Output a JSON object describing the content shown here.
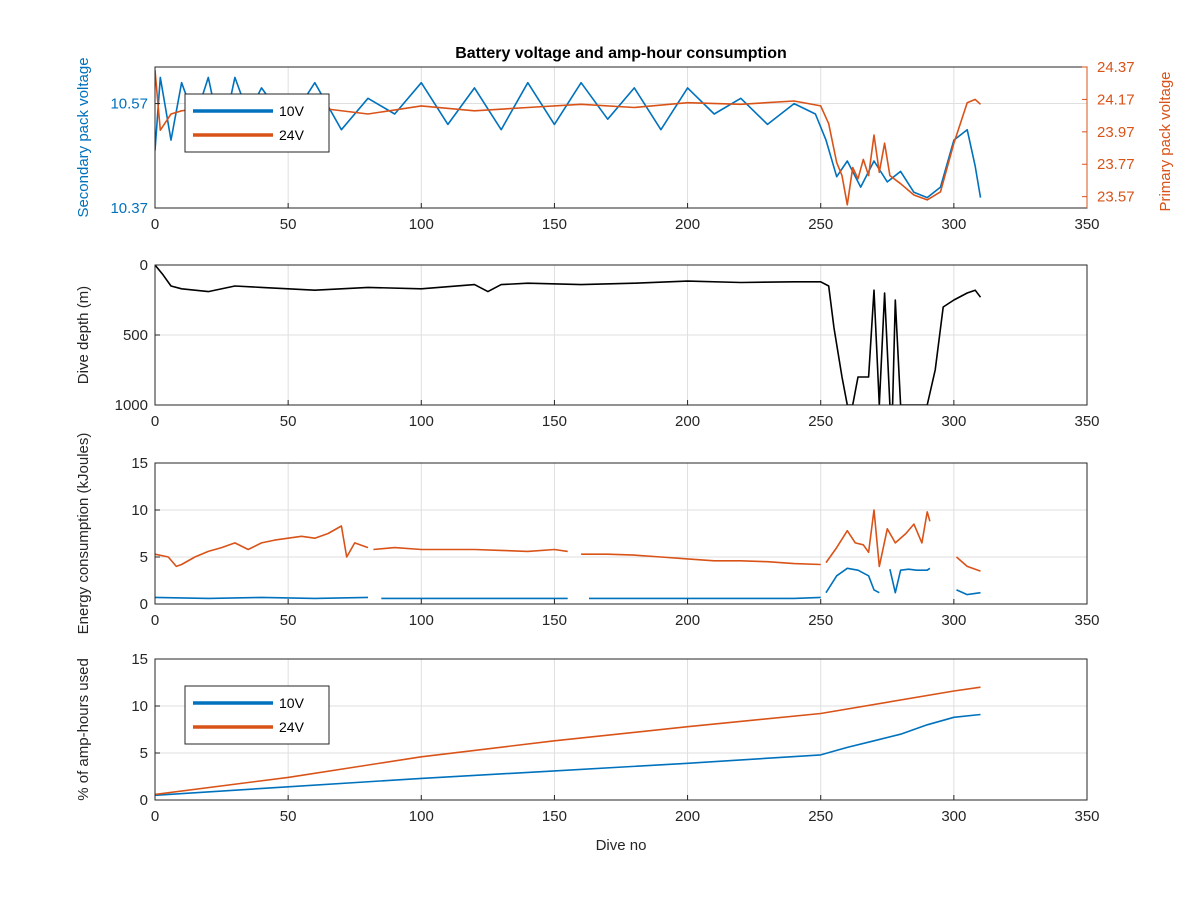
{
  "colors": {
    "blue": "#0072BD",
    "orange": "#D95319",
    "black": "#000000",
    "grid": "#dfdfdf",
    "axis": "#262626"
  },
  "chart_data": [
    {
      "type": "line",
      "title": "Battery voltage and amp-hour consumption",
      "xlabel": "",
      "xlim": [
        0,
        350
      ],
      "xticks": [
        0,
        50,
        100,
        150,
        200,
        250,
        300,
        350
      ],
      "ylabel_left": "Secondary pack voltage",
      "ylabel_right": "Primary pack voltage",
      "ylim_left": [
        10.37,
        10.64
      ],
      "yticks_left": [
        "10.37",
        "10.57"
      ],
      "ylim_right": [
        23.5,
        24.37
      ],
      "yticks_right": [
        "23.57",
        "23.77",
        "23.97",
        "24.17",
        "24.37"
      ],
      "grid": true,
      "legend": {
        "placement": "top-left",
        "entries": [
          "10V",
          "24V"
        ]
      },
      "series": [
        {
          "name": "10V",
          "axis": "left",
          "x": [
            0,
            2,
            6,
            10,
            15,
            20,
            25,
            30,
            35,
            40,
            50,
            60,
            70,
            80,
            90,
            100,
            110,
            120,
            130,
            140,
            150,
            160,
            170,
            180,
            190,
            200,
            210,
            220,
            230,
            240,
            248,
            252,
            256,
            260,
            265,
            270,
            275,
            280,
            285,
            290,
            295,
            300,
            305,
            308,
            310
          ],
          "y": [
            10.48,
            10.62,
            10.5,
            10.61,
            10.54,
            10.62,
            10.5,
            10.62,
            10.55,
            10.6,
            10.53,
            10.61,
            10.52,
            10.58,
            10.55,
            10.61,
            10.53,
            10.6,
            10.52,
            10.61,
            10.53,
            10.61,
            10.54,
            10.6,
            10.52,
            10.6,
            10.55,
            10.58,
            10.53,
            10.57,
            10.55,
            10.5,
            10.43,
            10.46,
            10.41,
            10.46,
            10.42,
            10.44,
            10.4,
            10.39,
            10.41,
            10.5,
            10.52,
            10.45,
            10.39
          ]
        },
        {
          "name": "24V",
          "axis": "right",
          "x": [
            0,
            2,
            4,
            6,
            10,
            20,
            30,
            40,
            60,
            80,
            100,
            120,
            140,
            160,
            180,
            200,
            220,
            240,
            250,
            253,
            256,
            258,
            260,
            262,
            264,
            266,
            268,
            270,
            272,
            274,
            276,
            280,
            285,
            290,
            295,
            300,
            305,
            308,
            310
          ],
          "y": [
            24.35,
            23.98,
            24.03,
            24.08,
            24.1,
            24.12,
            24.13,
            24.11,
            24.12,
            24.08,
            24.13,
            24.1,
            24.12,
            24.14,
            24.12,
            24.15,
            24.14,
            24.16,
            24.13,
            24.02,
            23.78,
            23.7,
            23.52,
            23.75,
            23.68,
            23.8,
            23.7,
            23.95,
            23.72,
            23.9,
            23.7,
            23.65,
            23.58,
            23.55,
            23.6,
            23.9,
            24.15,
            24.17,
            24.14
          ]
        }
      ]
    },
    {
      "type": "line",
      "title": "",
      "xlabel": "",
      "xlim": [
        0,
        350
      ],
      "xticks": [
        0,
        50,
        100,
        150,
        200,
        250,
        300,
        350
      ],
      "ylabel": "Dive depth (m)",
      "ylim": [
        0,
        1000
      ],
      "ylim_reversed": true,
      "yticks": [
        "0",
        "500",
        "1000"
      ],
      "grid": true,
      "series": [
        {
          "name": "",
          "color": "black",
          "x": [
            0,
            3,
            6,
            10,
            20,
            30,
            40,
            60,
            80,
            100,
            120,
            125,
            130,
            140,
            160,
            180,
            200,
            220,
            240,
            250,
            253,
            255,
            258,
            260,
            262,
            264,
            268,
            270,
            272,
            274,
            276,
            277,
            278,
            280,
            284,
            290,
            293,
            296,
            300,
            305,
            308,
            310
          ],
          "y": [
            0,
            70,
            150,
            170,
            190,
            150,
            160,
            180,
            160,
            170,
            140,
            190,
            140,
            130,
            140,
            130,
            115,
            125,
            120,
            120,
            150,
            450,
            800,
            1000,
            1000,
            800,
            800,
            180,
            1000,
            200,
            1000,
            1000,
            250,
            1000,
            1000,
            1000,
            750,
            300,
            250,
            200,
            180,
            230
          ]
        }
      ]
    },
    {
      "type": "line",
      "title": "",
      "xlabel": "",
      "xlim": [
        0,
        350
      ],
      "xticks": [
        0,
        50,
        100,
        150,
        200,
        250,
        300,
        350
      ],
      "ylabel": "Energy consumption (kJoules)",
      "ylim": [
        0,
        15
      ],
      "yticks": [
        "0",
        "5",
        "10",
        "15"
      ],
      "grid": true,
      "series": [
        {
          "name": "24V",
          "color": "orange",
          "segments": [
            {
              "x": [
                0,
                5,
                8,
                10,
                15,
                20,
                25,
                30,
                35,
                40,
                45,
                50,
                55,
                60,
                65,
                70,
                72,
                75,
                80
              ],
              "y": [
                5.3,
                5.0,
                4.0,
                4.2,
                5.0,
                5.6,
                6.0,
                6.5,
                5.8,
                6.5,
                6.8,
                7.0,
                7.2,
                7.0,
                7.5,
                8.3,
                5.0,
                6.5,
                6.0
              ]
            },
            {
              "x": [
                82,
                90,
                100,
                110,
                120,
                130,
                140,
                150,
                155
              ],
              "y": [
                5.8,
                6.0,
                5.8,
                5.8,
                5.8,
                5.7,
                5.6,
                5.8,
                5.6
              ]
            },
            {
              "x": [
                160,
                170,
                180,
                190,
                200,
                210,
                220,
                230,
                240,
                250
              ],
              "y": [
                5.3,
                5.3,
                5.2,
                5.0,
                4.8,
                4.6,
                4.6,
                4.5,
                4.3,
                4.2
              ]
            },
            {
              "x": [
                252,
                256,
                260,
                263,
                266,
                268,
                270,
                272,
                275,
                278,
                282,
                285,
                288,
                290,
                291
              ],
              "y": [
                4.4,
                6.0,
                7.8,
                6.5,
                6.3,
                5.5,
                10.0,
                4.0,
                8.0,
                6.5,
                7.5,
                8.5,
                6.5,
                9.8,
                8.8
              ]
            },
            {
              "x": [
                301,
                305,
                310
              ],
              "y": [
                5.0,
                4.0,
                3.5
              ]
            }
          ]
        },
        {
          "name": "10V",
          "color": "blue",
          "segments": [
            {
              "x": [
                0,
                20,
                40,
                60,
                80
              ],
              "y": [
                0.7,
                0.6,
                0.7,
                0.6,
                0.7
              ]
            },
            {
              "x": [
                85,
                100,
                120,
                140,
                155
              ],
              "y": [
                0.6,
                0.6,
                0.6,
                0.6,
                0.6
              ]
            },
            {
              "x": [
                163,
                180,
                200,
                220,
                240,
                250
              ],
              "y": [
                0.6,
                0.6,
                0.6,
                0.6,
                0.6,
                0.7
              ]
            },
            {
              "x": [
                252,
                256,
                260,
                264,
                268,
                270,
                272
              ],
              "y": [
                1.2,
                3.0,
                3.8,
                3.6,
                3.0,
                1.5,
                1.2
              ]
            },
            {
              "x": [
                276,
                278,
                280,
                283,
                286,
                290,
                291
              ],
              "y": [
                3.7,
                1.2,
                3.6,
                3.7,
                3.6,
                3.6,
                3.8
              ]
            },
            {
              "x": [
                301,
                305,
                310
              ],
              "y": [
                1.5,
                1.0,
                1.2
              ]
            }
          ]
        }
      ]
    },
    {
      "type": "line",
      "title": "",
      "xlabel": "Dive no",
      "xlim": [
        0,
        350
      ],
      "xticks": [
        0,
        50,
        100,
        150,
        200,
        250,
        300,
        350
      ],
      "ylabel": "% of amp-hours used",
      "ylim": [
        0,
        15
      ],
      "yticks": [
        "0",
        "5",
        "10",
        "15"
      ],
      "grid": true,
      "legend": {
        "placement": "top-left",
        "entries": [
          "10V",
          "24V"
        ]
      },
      "series": [
        {
          "name": "10V",
          "color": "blue",
          "x": [
            0,
            50,
            100,
            150,
            200,
            250,
            260,
            270,
            280,
            290,
            300,
            310
          ],
          "y": [
            0.5,
            1.4,
            2.3,
            3.1,
            3.9,
            4.8,
            5.6,
            6.3,
            7.0,
            8.0,
            8.8,
            9.1
          ]
        },
        {
          "name": "24V",
          "color": "orange",
          "x": [
            0,
            50,
            100,
            150,
            200,
            250,
            300,
            310
          ],
          "y": [
            0.6,
            2.4,
            4.6,
            6.3,
            7.8,
            9.2,
            11.6,
            12.0
          ]
        }
      ]
    }
  ]
}
